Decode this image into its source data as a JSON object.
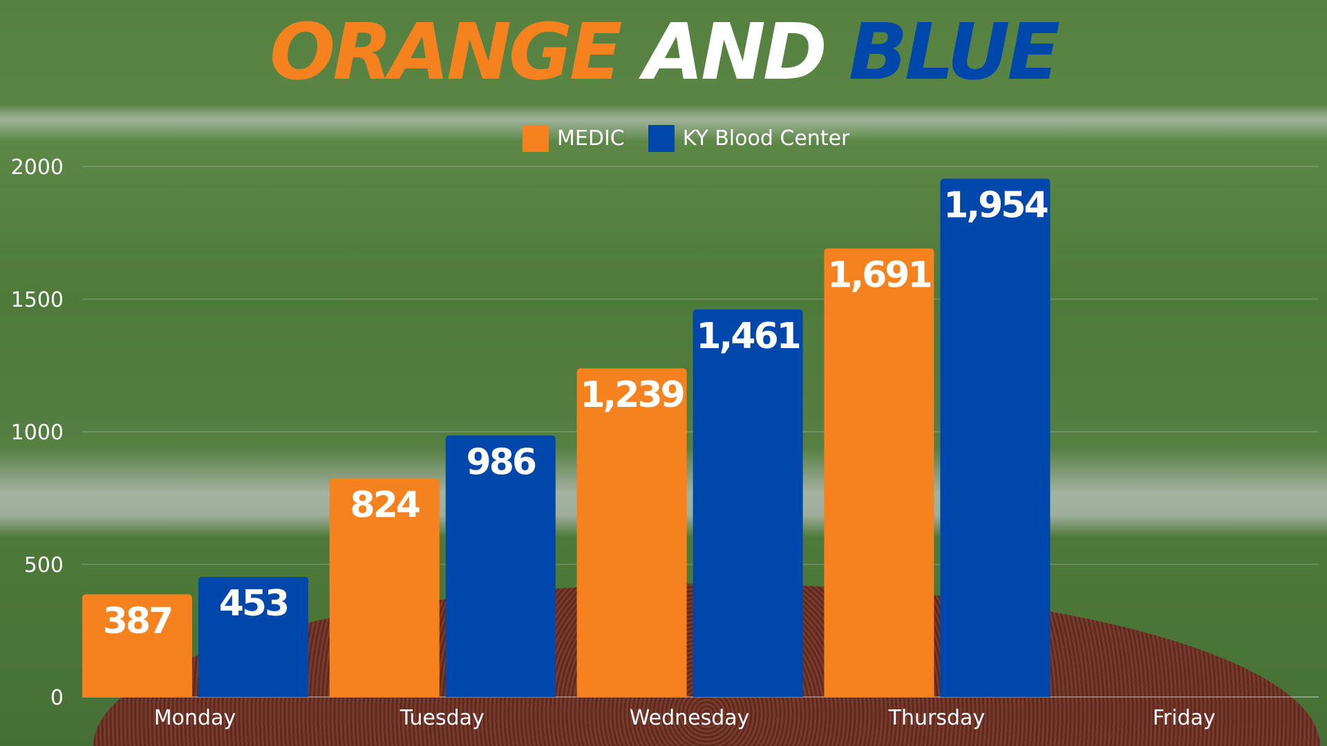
{
  "chart_data": {
    "type": "bar",
    "title_parts": [
      {
        "text": "ORANGE",
        "color": "#f5821f"
      },
      {
        "text": "AND",
        "color": "#ffffff"
      },
      {
        "text": "BLUE",
        "color": "#0047ab"
      }
    ],
    "categories": [
      "Monday",
      "Tuesday",
      "Wednesday",
      "Thursday",
      "Friday"
    ],
    "series": [
      {
        "name": "MEDIC",
        "color": "#f5821f",
        "values": [
          387,
          824,
          1239,
          1691,
          null
        ],
        "labels": [
          "387",
          "824",
          "1,239",
          "1,691",
          ""
        ]
      },
      {
        "name": "KY Blood Center",
        "color": "#0047ab",
        "values": [
          453,
          986,
          1461,
          1954,
          null
        ],
        "labels": [
          "453",
          "986",
          "1,461",
          "1,954",
          ""
        ]
      }
    ],
    "yticks": [
      "0",
      "500",
      "1000",
      "1500",
      "2000"
    ],
    "ylim": [
      0,
      2000
    ],
    "grid": true,
    "legend": "top-center"
  }
}
